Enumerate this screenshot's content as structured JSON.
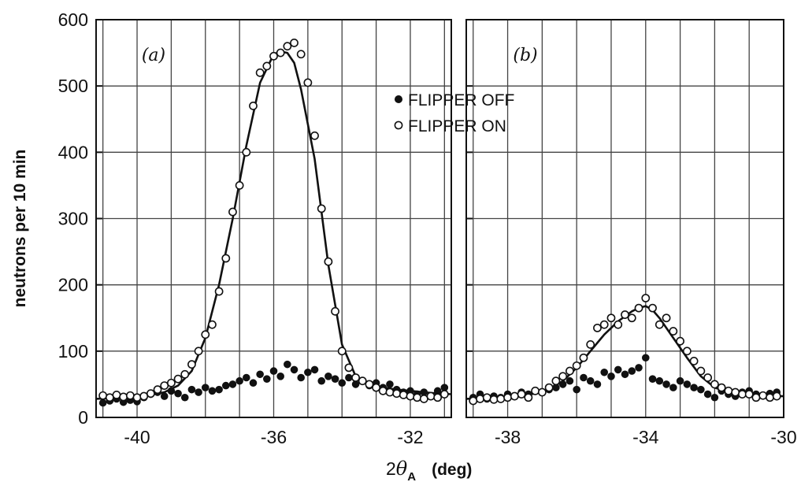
{
  "chart_data": {
    "type": "scatter",
    "ylabel": "neutrons per 10 min",
    "xlabel_prefix": "2",
    "xlabel_symbol": "θ",
    "xlabel_sub": "A",
    "xlabel_unit": "(deg)",
    "ylim": [
      0,
      600
    ],
    "yticks": [
      "0",
      "100",
      "200",
      "300",
      "400",
      "500",
      "600"
    ],
    "grid": true,
    "legend_position": "top-center",
    "legend": [
      {
        "label": "FLIPPER OFF",
        "marker": "filled-circle"
      },
      {
        "label": "FLIPPER ON",
        "marker": "open-circle"
      }
    ],
    "panels": [
      {
        "label": "(a)",
        "xlim": [
          -41.2,
          -30.8
        ],
        "xticks": [
          -40,
          -36,
          -32
        ],
        "xtick_labels": [
          "-40",
          "-36",
          "-32"
        ],
        "series": [
          {
            "name": "FLIPPER OFF",
            "marker": "filled-circle",
            "x": [
              -41,
              -40.8,
              -40.6,
              -40.4,
              -40.2,
              -40,
              -39.8,
              -39.6,
              -39.4,
              -39.2,
              -39,
              -38.8,
              -38.6,
              -38.4,
              -38.2,
              -38,
              -37.8,
              -37.6,
              -37.4,
              -37.2,
              -37,
              -36.8,
              -36.6,
              -36.4,
              -36.2,
              -36,
              -35.8,
              -35.6,
              -35.4,
              -35.2,
              -35,
              -34.8,
              -34.6,
              -34.4,
              -34.2,
              -34,
              -33.8,
              -33.6,
              -33.4,
              -33.2,
              -33,
              -32.8,
              -32.6,
              -32.4,
              -32.2,
              -32,
              -31.8,
              -31.6,
              -31.4,
              -31.2,
              -31
            ],
            "y": [
              22,
              25,
              28,
              23,
              26,
              24,
              30,
              35,
              38,
              32,
              40,
              36,
              30,
              42,
              38,
              45,
              40,
              42,
              48,
              50,
              55,
              60,
              52,
              65,
              58,
              70,
              62,
              80,
              72,
              60,
              68,
              72,
              55,
              62,
              58,
              52,
              60,
              50,
              55,
              48,
              52,
              45,
              50,
              42,
              38,
              40,
              35,
              38,
              32,
              40,
              45
            ]
          },
          {
            "name": "FLIPPER ON",
            "marker": "open-circle",
            "x": [
              -41,
              -40.8,
              -40.6,
              -40.4,
              -40.2,
              -40,
              -39.8,
              -39.6,
              -39.4,
              -39.2,
              -39,
              -38.8,
              -38.6,
              -38.4,
              -38.2,
              -38,
              -37.8,
              -37.6,
              -37.4,
              -37.2,
              -37,
              -36.8,
              -36.6,
              -36.4,
              -36.2,
              -36,
              -35.8,
              -35.6,
              -35.4,
              -35.2,
              -35,
              -34.8,
              -34.6,
              -34.4,
              -34.2,
              -34,
              -33.8,
              -33.6,
              -33.4,
              -33.2,
              -33,
              -32.8,
              -32.6,
              -32.4,
              -32.2,
              -32,
              -31.8,
              -31.6,
              -31.4,
              -31.2,
              -31
            ],
            "y": [
              33,
              30,
              34,
              31,
              33,
              30,
              32,
              36,
              42,
              48,
              52,
              58,
              65,
              80,
              100,
              125,
              140,
              190,
              240,
              310,
              350,
              400,
              470,
              520,
              530,
              545,
              550,
              560,
              565,
              548,
              505,
              425,
              315,
              235,
              160,
              100,
              75,
              60,
              55,
              50,
              45,
              40,
              38,
              36,
              34,
              32,
              30,
              28,
              32,
              30,
              35
            ]
          }
        ],
        "curve": {
          "x": [
            -41.2,
            -40.4,
            -40,
            -39.6,
            -39.2,
            -38.8,
            -38.4,
            -38,
            -37.6,
            -37.2,
            -36.8,
            -36.4,
            -36,
            -35.8,
            -35.6,
            -35.4,
            -35.2,
            -34.8,
            -34.4,
            -34,
            -33.6,
            -33.2,
            -32.8,
            -32.4,
            -32,
            -31.6,
            -31.2,
            -30.8
          ],
          "y": [
            28,
            30,
            32,
            34,
            38,
            48,
            70,
            120,
            200,
            300,
            410,
            505,
            548,
            552,
            550,
            535,
            495,
            390,
            230,
            110,
            62,
            50,
            45,
            42,
            40,
            38,
            36,
            35
          ]
        }
      },
      {
        "label": "(b)",
        "xlim": [
          -39.2,
          -30
        ],
        "xticks": [
          -38,
          -34,
          -30
        ],
        "xtick_labels": [
          "-38",
          "-34",
          "-30"
        ],
        "series": [
          {
            "name": "FLIPPER OFF",
            "marker": "filled-circle",
            "x": [
              -39,
              -38.8,
              -38.6,
              -38.4,
              -38.2,
              -38,
              -37.8,
              -37.6,
              -37.4,
              -37.2,
              -37,
              -36.8,
              -36.6,
              -36.4,
              -36.2,
              -36,
              -35.8,
              -35.6,
              -35.4,
              -35.2,
              -35,
              -34.8,
              -34.6,
              -34.4,
              -34.2,
              -34,
              -33.8,
              -33.6,
              -33.4,
              -33.2,
              -33,
              -32.8,
              -32.6,
              -32.4,
              -32.2,
              -32,
              -31.8,
              -31.6,
              -31.4,
              -31.2,
              -31,
              -30.8,
              -30.6,
              -30.4,
              -30.2
            ],
            "y": [
              30,
              35,
              28,
              32,
              30,
              35,
              32,
              38,
              35,
              40,
              38,
              42,
              45,
              50,
              55,
              42,
              60,
              55,
              50,
              68,
              62,
              72,
              65,
              70,
              75,
              90,
              58,
              55,
              50,
              45,
              55,
              50,
              45,
              42,
              35,
              30,
              40,
              35,
              32,
              38,
              40,
              35,
              33,
              36,
              38
            ]
          },
          {
            "name": "FLIPPER ON",
            "marker": "open-circle",
            "x": [
              -39,
              -38.8,
              -38.6,
              -38.4,
              -38.2,
              -38,
              -37.8,
              -37.6,
              -37.4,
              -37.2,
              -37,
              -36.8,
              -36.6,
              -36.4,
              -36.2,
              -36,
              -35.8,
              -35.6,
              -35.4,
              -35.2,
              -35,
              -34.8,
              -34.6,
              -34.4,
              -34.2,
              -34,
              -33.8,
              -33.6,
              -33.4,
              -33.2,
              -33,
              -32.8,
              -32.6,
              -32.4,
              -32.2,
              -32,
              -31.8,
              -31.6,
              -31.4,
              -31.2,
              -31,
              -30.8,
              -30.6,
              -30.4,
              -30.2
            ],
            "y": [
              25,
              28,
              30,
              27,
              28,
              30,
              32,
              35,
              30,
              40,
              38,
              45,
              55,
              62,
              70,
              78,
              90,
              110,
              135,
              140,
              150,
              140,
              155,
              150,
              165,
              180,
              165,
              140,
              150,
              130,
              115,
              100,
              85,
              70,
              60,
              50,
              45,
              40,
              38,
              35,
              35,
              30,
              33,
              30,
              32
            ]
          }
        ],
        "curve": {
          "x": [
            -39.2,
            -38.4,
            -37.6,
            -37.2,
            -36.8,
            -36.4,
            -36,
            -35.6,
            -35.2,
            -34.8,
            -34.4,
            -34.2,
            -34,
            -33.8,
            -33.6,
            -33.2,
            -32.8,
            -32.4,
            -32,
            -31.6,
            -31.2,
            -30.8,
            -30
          ],
          "y": [
            28,
            30,
            33,
            36,
            42,
            55,
            75,
            100,
            125,
            145,
            160,
            165,
            168,
            162,
            150,
            120,
            90,
            62,
            45,
            38,
            35,
            33,
            32
          ]
        }
      }
    ]
  }
}
